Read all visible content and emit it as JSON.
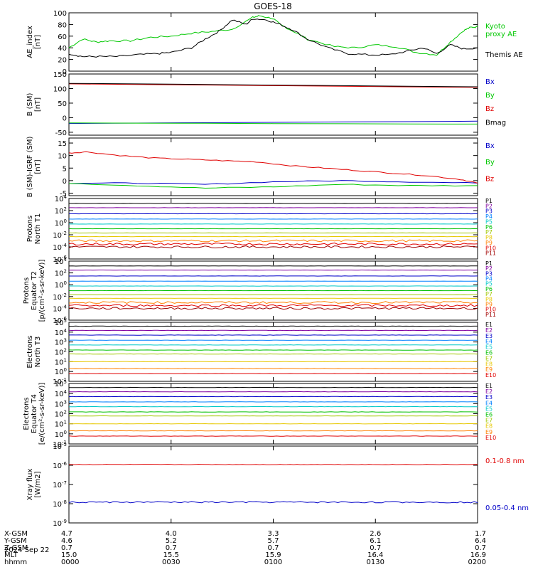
{
  "title": "GOES-18",
  "colors": {
    "black": "#000000",
    "green": "#00c800",
    "red": "#e00000",
    "blue": "#0000c8",
    "darkred": "#b00000",
    "purple": "#8000a0",
    "ramp": [
      "#000000",
      "#8000a0",
      "#0000c8",
      "#0080ff",
      "#00c8c8",
      "#00c000",
      "#a0c800",
      "#e6c800",
      "#ff8000",
      "#e00000",
      "#a00000"
    ]
  },
  "time_axis": {
    "range": [
      0,
      120
    ],
    "ticks": [
      0,
      30,
      60,
      90,
      120
    ],
    "rows": [
      {
        "label": "X-GSM",
        "values": [
          "4.7",
          "4.0",
          "3.3",
          "2.6",
          "1.7"
        ]
      },
      {
        "label": "Y-GSM",
        "values": [
          "4.6",
          "5.2",
          "5.7",
          "6.1",
          "6.4"
        ]
      },
      {
        "label": "Z-GSM",
        "values": [
          "0.7",
          "0.7",
          "0.7",
          "0.7",
          "0.7"
        ]
      },
      {
        "label": "MLT",
        "values": [
          "15.0",
          "15.5",
          "15.9",
          "16.4",
          "16.9"
        ]
      },
      {
        "label": "hhmm",
        "values": [
          "0000",
          "0030",
          "0100",
          "0130",
          "0200"
        ]
      }
    ],
    "date": "2024 Sep 22"
  },
  "chart_data": [
    {
      "type": "line",
      "id": "ae",
      "ylabel": "AE_index\n[nT]",
      "ylim": [
        0,
        100
      ],
      "yticks": [
        "0",
        "20",
        "40",
        "60",
        "80",
        "100"
      ],
      "series": [
        {
          "name": "Kyoto\nproxy AE",
          "color": "#00c800",
          "x": [
            0,
            4,
            8,
            12,
            18,
            24,
            30,
            36,
            42,
            48,
            54,
            56,
            60,
            62,
            66,
            70,
            78,
            84,
            90,
            96,
            102,
            108,
            112,
            116,
            118,
            120
          ],
          "y": [
            40,
            55,
            50,
            52,
            52,
            58,
            60,
            65,
            68,
            72,
            92,
            95,
            90,
            80,
            68,
            55,
            42,
            40,
            45,
            42,
            32,
            28,
            50,
            70,
            75,
            76
          ]
        },
        {
          "name": "Themis AE",
          "color": "#000000",
          "x": [
            0,
            4,
            8,
            14,
            20,
            26,
            30,
            36,
            40,
            44,
            48,
            52,
            54,
            58,
            62,
            66,
            70,
            76,
            82,
            88,
            94,
            100,
            104,
            108,
            112,
            116,
            120
          ],
          "y": [
            30,
            25,
            25,
            25,
            28,
            30,
            32,
            40,
            55,
            68,
            88,
            80,
            90,
            88,
            80,
            70,
            55,
            40,
            30,
            28,
            28,
            35,
            40,
            30,
            45,
            38,
            40
          ]
        }
      ]
    },
    {
      "type": "line",
      "id": "bsm",
      "ylabel": "B (SM)\n[nT]",
      "ylim": [
        -60,
        150
      ],
      "yticks": [
        "-50",
        "0",
        "50",
        "100",
        "150"
      ],
      "ytick_values": [
        -50,
        0,
        50,
        100,
        150
      ],
      "series": [
        {
          "name": "Bx",
          "color": "#0000c8",
          "x": [
            0,
            120
          ],
          "y": [
            -20,
            -12
          ]
        },
        {
          "name": "By",
          "color": "#00c800",
          "x": [
            0,
            120
          ],
          "y": [
            -18,
            -22
          ]
        },
        {
          "name": "Bz",
          "color": "#e00000",
          "x": [
            0,
            120
          ],
          "y": [
            116,
            104
          ]
        },
        {
          "name": "Bmag",
          "color": "#000000",
          "x": [
            0,
            120
          ],
          "y": [
            118,
            106
          ]
        }
      ]
    },
    {
      "type": "line",
      "id": "bsm-igrf",
      "ylabel": "B (SM)-IGRF (SM)\n[nT]",
      "ylim": [
        -6,
        17
      ],
      "yticks": [
        "-5",
        "0",
        "5",
        "10",
        "15"
      ],
      "ytick_values": [
        -5,
        0,
        5,
        10,
        15
      ],
      "series": [
        {
          "name": "Bx",
          "color": "#0000c8",
          "x": [
            0,
            20,
            40,
            60,
            80,
            100,
            120
          ],
          "y": [
            -1,
            -1,
            -1.5,
            -0.5,
            0,
            -0.5,
            -1
          ]
        },
        {
          "name": "By",
          "color": "#00c800",
          "x": [
            0,
            20,
            40,
            60,
            80,
            100,
            120
          ],
          "y": [
            -1,
            -2,
            -3,
            -2.5,
            -1.5,
            -2,
            -2
          ]
        },
        {
          "name": "Bz",
          "color": "#e00000",
          "x": [
            0,
            5,
            15,
            25,
            35,
            45,
            55,
            65,
            75,
            85,
            95,
            105,
            115,
            120
          ],
          "y": [
            11,
            11.5,
            10,
            9,
            8.5,
            8,
            7.5,
            6,
            5,
            4,
            3,
            2,
            0.5,
            -1
          ]
        }
      ]
    },
    {
      "type": "line",
      "id": "protons-t1",
      "ylabel": "Protons\nNorth T1",
      "log_ylim": [
        -6,
        4
      ],
      "yticks": [
        "10-6",
        "10-4",
        "10-2",
        "100",
        "102",
        "104"
      ],
      "series": [
        {
          "name": "P1",
          "y": 1500
        },
        {
          "name": "P2",
          "y": 300
        },
        {
          "name": "P3",
          "y": 30
        },
        {
          "name": "P4",
          "y": 4
        },
        {
          "name": "P5",
          "y": 0.6
        },
        {
          "name": "P6",
          "y": 0.1
        },
        {
          "name": "P7",
          "y": 0.02
        },
        {
          "name": "P8",
          "y": 0.005
        },
        {
          "name": "P9",
          "y": 0.001
        },
        {
          "name": "P10",
          "y": 0.0003
        },
        {
          "name": "P11",
          "y": 0.0001
        }
      ]
    },
    {
      "type": "line",
      "id": "protons-t2",
      "ylabel": "Protons\nEquator T2\n[p/(cm²-s-sr-keV)]",
      "log_ylim": [
        -6,
        4
      ],
      "yticks": [
        "10-6",
        "10-4",
        "10-2",
        "100",
        "102",
        "104"
      ],
      "series": [
        {
          "name": "P1",
          "y": 1500
        },
        {
          "name": "P2",
          "y": 300
        },
        {
          "name": "P3",
          "y": 30
        },
        {
          "name": "P4",
          "y": 4
        },
        {
          "name": "P5",
          "y": 0.6
        },
        {
          "name": "P6",
          "y": 0.1
        },
        {
          "name": "P7",
          "y": 0.02
        },
        {
          "name": "P8",
          "y": 0.005
        },
        {
          "name": "P9",
          "y": 0.001
        },
        {
          "name": "P10",
          "y": 0.0003
        },
        {
          "name": "P11",
          "y": 0.0001
        }
      ]
    },
    {
      "type": "line",
      "id": "electrons-t3",
      "ylabel": "Electrons\nNorth T3",
      "log_ylim": [
        -1,
        5
      ],
      "yticks": [
        "10-1",
        "100",
        "101",
        "102",
        "103",
        "104",
        "105"
      ],
      "series": [
        {
          "name": "E1",
          "y": 40000
        },
        {
          "name": "E2",
          "y": 15000
        },
        {
          "name": "E3",
          "y": 5000
        },
        {
          "name": "E4",
          "y": 1500
        },
        {
          "name": "E5",
          "y": 500
        },
        {
          "name": "E6",
          "y": 150
        },
        {
          "name": "E7",
          "y": 60
        },
        {
          "name": "E8",
          "y": 10
        },
        {
          "name": "E9",
          "y": 2
        },
        {
          "name": "E10",
          "y": 0.6
        }
      ]
    },
    {
      "type": "line",
      "id": "electrons-t4",
      "ylabel": "Electrons\nEquator T4\n[e/(cm²-s-sr-keV)]",
      "log_ylim": [
        -1,
        5
      ],
      "yticks": [
        "10-1",
        "100",
        "101",
        "102",
        "103",
        "104",
        "105"
      ],
      "series": [
        {
          "name": "E1",
          "y": 40000
        },
        {
          "name": "E2",
          "y": 15000
        },
        {
          "name": "E3",
          "y": 5000
        },
        {
          "name": "E4",
          "y": 1500
        },
        {
          "name": "E5",
          "y": 500
        },
        {
          "name": "E6",
          "y": 150
        },
        {
          "name": "E7",
          "y": 60
        },
        {
          "name": "E8",
          "y": 10
        },
        {
          "name": "E9",
          "y": 2
        },
        {
          "name": "E10",
          "y": 0.6
        }
      ]
    },
    {
      "type": "line",
      "id": "xray",
      "ylabel": "Xray flux\n[W/m2]",
      "log_ylim": [
        -9,
        -5
      ],
      "yticks": [
        "10-9",
        "10-8",
        "10-7",
        "10-6",
        "10-5"
      ],
      "series": [
        {
          "name": "0.1-0.8 nm",
          "color": "#e00000",
          "y": 1.1e-06
        },
        {
          "name": "0.05-0.4 nm",
          "color": "#0000c8",
          "y": 1.2e-08
        }
      ]
    }
  ]
}
